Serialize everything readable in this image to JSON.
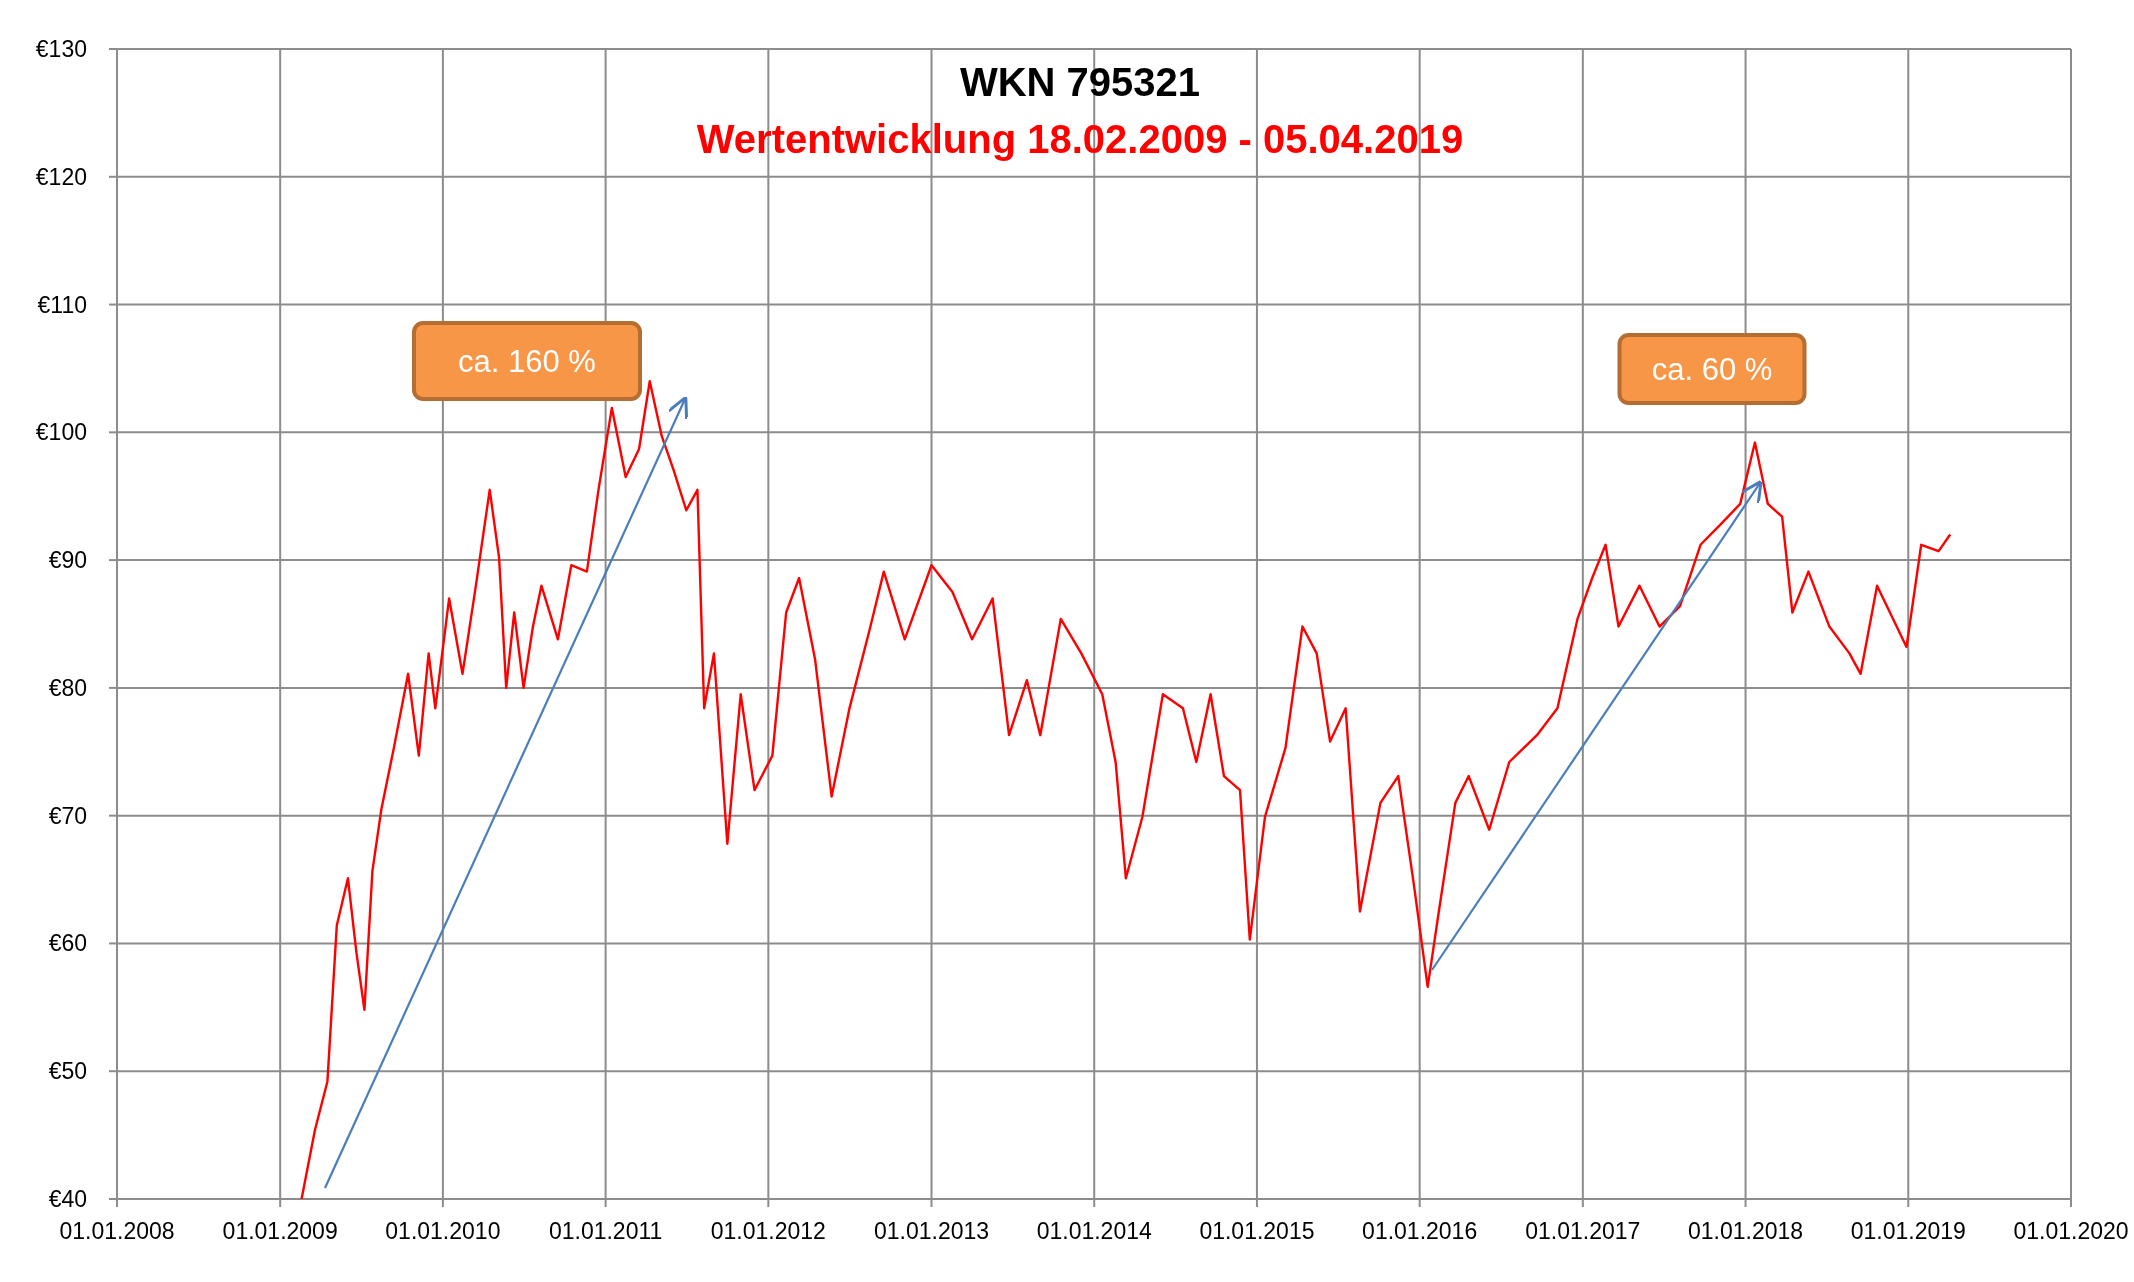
{
  "chart_data": {
    "type": "line",
    "title": "WKN 795321",
    "subtitle": "Wertentwicklung 18.02.2009 - 05.04.2019",
    "xlim": [
      "2008-01-01",
      "2020-01-01"
    ],
    "xticks": [
      {
        "value": "2008-01-01",
        "label": "01.01.2008"
      },
      {
        "value": "2009-01-01",
        "label": "01.01.2009"
      },
      {
        "value": "2010-01-01",
        "label": "01.01.2010"
      },
      {
        "value": "2011-01-01",
        "label": "01.01.2011"
      },
      {
        "value": "2012-01-01",
        "label": "01.01.2012"
      },
      {
        "value": "2013-01-01",
        "label": "01.01.2013"
      },
      {
        "value": "2014-01-01",
        "label": "01.01.2014"
      },
      {
        "value": "2015-01-01",
        "label": "01.01.2015"
      },
      {
        "value": "2016-01-01",
        "label": "01.01.2016"
      },
      {
        "value": "2017-01-01",
        "label": "01.01.2017"
      },
      {
        "value": "2018-01-01",
        "label": "01.01.2018"
      },
      {
        "value": "2019-01-01",
        "label": "01.01.2019"
      },
      {
        "value": "2020-01-01",
        "label": "01.01.2020"
      }
    ],
    "ylim": [
      40,
      130
    ],
    "yticks": [
      {
        "value": 40,
        "label": "€40"
      },
      {
        "value": 50,
        "label": "€50"
      },
      {
        "value": 60,
        "label": "€60"
      },
      {
        "value": 70,
        "label": "€70"
      },
      {
        "value": 80,
        "label": "€80"
      },
      {
        "value": 90,
        "label": "€90"
      },
      {
        "value": 100,
        "label": "€100"
      },
      {
        "value": 110,
        "label": "€110"
      },
      {
        "value": 120,
        "label": "€120"
      },
      {
        "value": 130,
        "label": "€130"
      }
    ],
    "grid": true,
    "annotations": [
      "ca. 160 %",
      "ca. 60 %"
    ],
    "x": [
      "2009-02-18",
      "2009-03-20",
      "2009-04-17",
      "2009-05-08",
      "2009-06-02",
      "2009-06-21",
      "2009-07-09",
      "2009-07-27",
      "2009-08-16",
      "2009-09-13",
      "2009-10-15",
      "2009-11-08",
      "2009-11-30",
      "2009-12-15",
      "2010-01-15",
      "2010-02-14",
      "2010-03-16",
      "2010-04-16",
      "2010-05-07",
      "2010-05-23",
      "2010-06-10",
      "2010-07-01",
      "2010-07-22",
      "2010-08-10",
      "2010-09-16",
      "2010-10-16",
      "2010-11-20",
      "2010-12-16",
      "2011-01-15",
      "2011-02-15",
      "2011-03-17",
      "2011-04-10",
      "2011-05-07",
      "2011-06-02",
      "2011-07-01",
      "2011-07-26",
      "2011-08-10",
      "2011-09-01",
      "2011-10-01",
      "2011-10-31",
      "2011-12-01",
      "2012-01-10",
      "2012-02-10",
      "2012-03-10",
      "2012-04-15",
      "2012-05-22",
      "2012-07-01",
      "2012-08-17",
      "2012-09-16",
      "2012-11-02",
      "2013-01-01",
      "2013-02-17",
      "2013-04-02",
      "2013-05-18",
      "2013-06-24",
      "2013-08-03",
      "2013-09-02",
      "2013-10-18",
      "2013-12-03",
      "2014-01-19",
      "2014-02-18",
      "2014-03-13",
      "2014-04-19",
      "2014-06-04",
      "2014-07-19",
      "2014-08-18",
      "2014-09-19",
      "2014-10-19",
      "2014-11-24",
      "2014-12-16",
      "2015-01-19",
      "2015-03-06",
      "2015-04-13",
      "2015-05-15",
      "2015-06-14",
      "2015-07-19",
      "2015-08-20",
      "2015-10-05",
      "2015-11-14",
      "2015-12-19",
      "2016-01-19",
      "2016-02-13",
      "2016-03-21",
      "2016-04-20",
      "2016-06-05",
      "2016-07-20",
      "2016-09-20",
      "2016-11-05",
      "2016-12-20",
      "2017-01-22",
      "2017-02-21",
      "2017-03-22",
      "2017-05-08",
      "2017-06-22",
      "2017-08-07",
      "2017-09-22",
      "2017-11-06",
      "2017-12-20",
      "2018-01-22",
      "2018-02-20",
      "2018-03-24",
      "2018-04-16",
      "2018-05-22",
      "2018-07-08",
      "2018-08-22",
      "2018-09-16",
      "2018-10-23",
      "2018-12-06",
      "2018-12-28",
      "2019-01-30",
      "2019-03-10",
      "2019-04-05"
    ],
    "series": [
      {
        "color": "#ff0000",
        "values": [
          40,
          45.4,
          49.2,
          61.4,
          65.1,
          59.3,
          54.8,
          65.7,
          70.5,
          75.3,
          81.1,
          74.7,
          82.7,
          78.4,
          87,
          81.1,
          88,
          95.5,
          90.2,
          80,
          85.9,
          80,
          84.8,
          88,
          83.8,
          89.6,
          89.1,
          95.5,
          101.9,
          96.5,
          98.7,
          104,
          99.7,
          97.1,
          93.9,
          95.5,
          78.4,
          82.7,
          67.8,
          79.5,
          72,
          74.7,
          85.9,
          88.6,
          82.2,
          71.5,
          78.4,
          84.8,
          89.1,
          83.8,
          89.6,
          87.5,
          83.8,
          87,
          76.3,
          80.6,
          76.3,
          85.4,
          82.7,
          79.5,
          74.2,
          65.1,
          69.9,
          79.5,
          78.4,
          74.2,
          79.5,
          73.1,
          72,
          60.3,
          69.9,
          75.3,
          84.8,
          82.7,
          75.8,
          78.4,
          62.5,
          71,
          73.1,
          64.6,
          56.6,
          62.5,
          71,
          73.1,
          68.9,
          74.2,
          76.3,
          78.4,
          85.4,
          88.6,
          91.2,
          84.8,
          88,
          84.8,
          86.4,
          91.2,
          92.8,
          94.4,
          99.2,
          94.4,
          93.4,
          85.9,
          89.1,
          84.8,
          82.7,
          81.1,
          88,
          84.8,
          83.2,
          91.2,
          90.7,
          92
        ]
      }
    ]
  }
}
